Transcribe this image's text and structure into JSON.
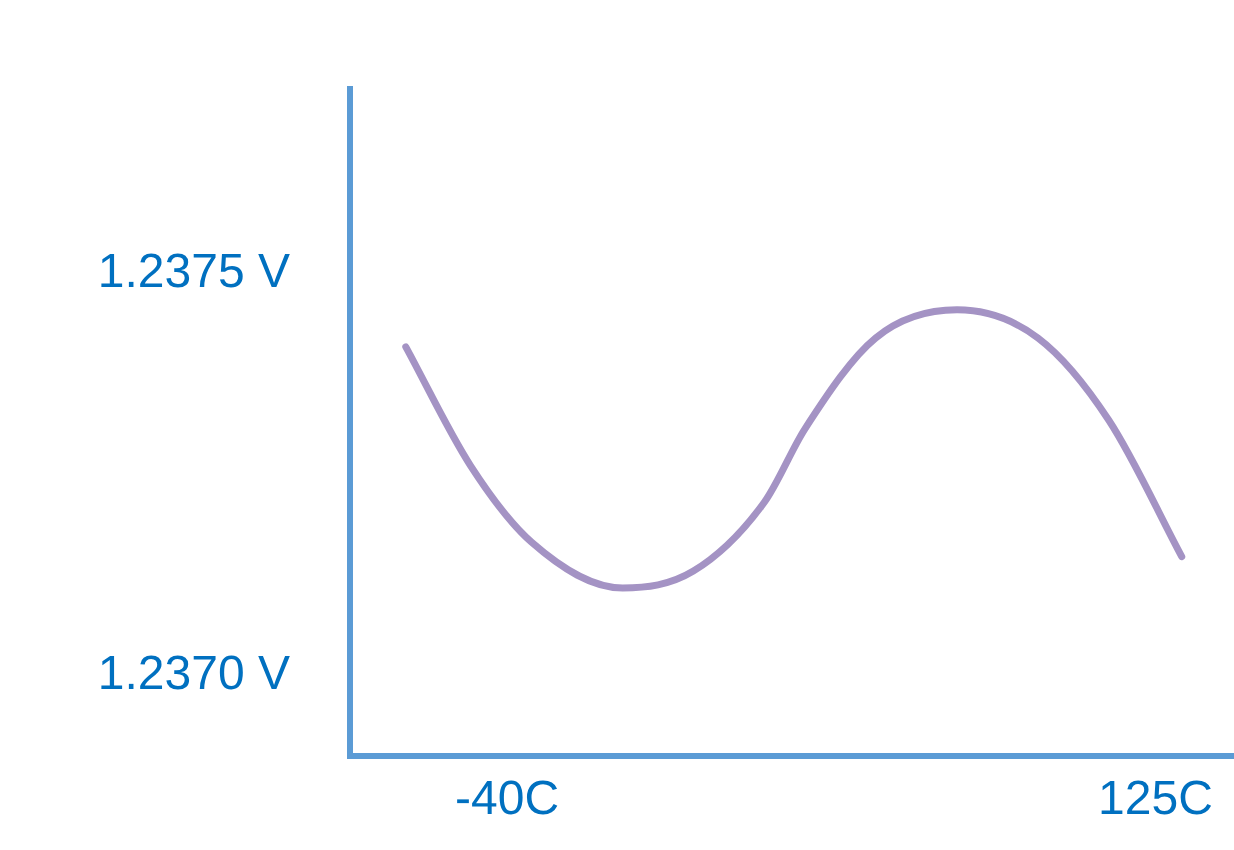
{
  "chart_data": {
    "type": "line",
    "x": [
      -65.8,
      -49.3,
      -33.8,
      -10.6,
      7.4,
      25.5,
      35.8,
      53.8,
      74.5,
      95.1,
      113.1,
      131.7
    ],
    "series": [
      {
        "color": "#a493c4",
        "values": [
          1.237409,
          1.237261,
          1.237166,
          1.237109,
          1.23713,
          1.237216,
          1.237307,
          1.23742,
          1.237455,
          1.23742,
          1.237318,
          1.237148
        ]
      }
    ],
    "xlim": [
      -80,
      145
    ],
    "xticks": [
      {
        "value": -40,
        "label": "-40C"
      },
      {
        "value": 125,
        "label": "125C"
      }
    ],
    "ylim": [
      1.2369,
      1.23773
    ],
    "yticks": [
      {
        "value": 1.237,
        "label": "1.2370 V"
      },
      {
        "value": 1.2375,
        "label": "1.2375 V"
      }
    ],
    "grid": false,
    "legend": false,
    "marker": "none",
    "line_style": "solid"
  }
}
